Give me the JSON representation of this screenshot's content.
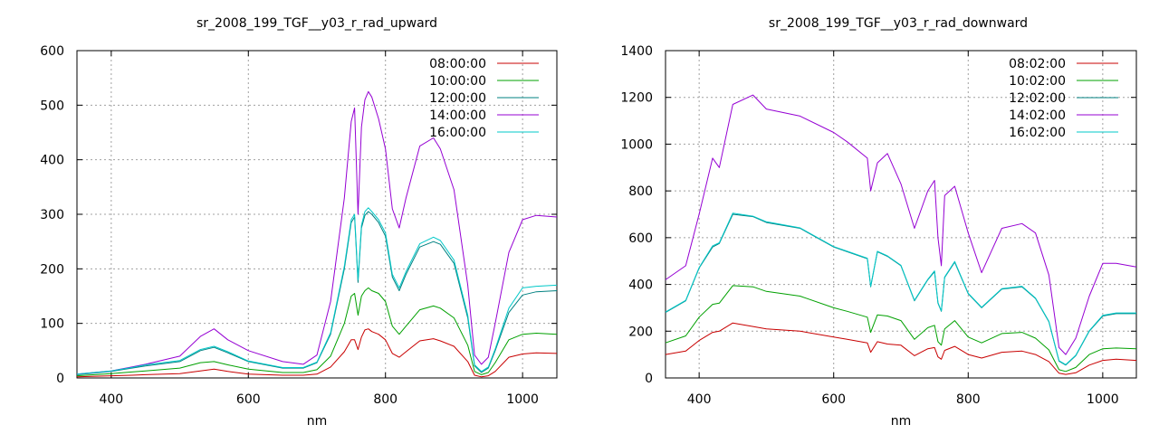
{
  "chart_data": [
    {
      "type": "line",
      "title": "sr_2008_199_TGF__y03_r_rad_upward",
      "xlabel": "nm",
      "ylabel": "",
      "xlim": [
        350,
        1050
      ],
      "ylim": [
        0,
        600
      ],
      "xticks": [
        400,
        600,
        800,
        1000
      ],
      "yticks": [
        0,
        100,
        200,
        300,
        400,
        500,
        600
      ],
      "grid": true,
      "legend_position": "top-right",
      "x": [
        350,
        400,
        430,
        450,
        500,
        530,
        550,
        570,
        600,
        650,
        680,
        700,
        720,
        740,
        750,
        755,
        760,
        765,
        770,
        775,
        780,
        790,
        800,
        810,
        820,
        830,
        850,
        870,
        880,
        900,
        920,
        930,
        940,
        950,
        960,
        980,
        1000,
        1020,
        1050
      ],
      "series": [
        {
          "name": "08:00:00",
          "color": "#c80000",
          "values": [
            2,
            4,
            5,
            6,
            8,
            13,
            16,
            12,
            7,
            5,
            5,
            7,
            20,
            48,
            70,
            70,
            52,
            75,
            88,
            90,
            85,
            80,
            70,
            45,
            38,
            48,
            68,
            72,
            68,
            58,
            30,
            5,
            2,
            4,
            12,
            38,
            44,
            46,
            45
          ]
        },
        {
          "name": "10:00:00",
          "color": "#00a000",
          "values": [
            4,
            8,
            11,
            13,
            18,
            28,
            30,
            24,
            16,
            10,
            10,
            15,
            40,
            100,
            150,
            155,
            115,
            150,
            160,
            165,
            160,
            155,
            140,
            95,
            80,
            95,
            125,
            132,
            128,
            110,
            60,
            12,
            6,
            10,
            28,
            70,
            80,
            82,
            80
          ]
        },
        {
          "name": "12:00:00",
          "color": "#008080",
          "values": [
            6,
            12,
            18,
            22,
            30,
            50,
            56,
            46,
            30,
            18,
            18,
            28,
            80,
            200,
            285,
            295,
            175,
            275,
            298,
            305,
            300,
            285,
            260,
            185,
            160,
            190,
            240,
            250,
            245,
            210,
            110,
            22,
            10,
            18,
            50,
            120,
            152,
            158,
            160
          ]
        },
        {
          "name": "14:00:00",
          "color": "#9500d3",
          "values": [
            7,
            13,
            20,
            25,
            40,
            76,
            90,
            70,
            50,
            30,
            25,
            42,
            140,
            330,
            470,
            495,
            300,
            460,
            510,
            525,
            515,
            475,
            420,
            310,
            275,
            330,
            425,
            440,
            420,
            345,
            170,
            42,
            25,
            38,
            100,
            230,
            290,
            298,
            295
          ]
        },
        {
          "name": "16:00:00",
          "color": "#00c8c8",
          "values": [
            7,
            13,
            19,
            24,
            32,
            52,
            58,
            48,
            31,
            19,
            19,
            29,
            83,
            205,
            290,
            300,
            180,
            280,
            305,
            312,
            305,
            290,
            266,
            190,
            165,
            195,
            246,
            258,
            252,
            216,
            115,
            24,
            12,
            20,
            53,
            128,
            165,
            168,
            170
          ]
        }
      ]
    },
    {
      "type": "line",
      "title": "sr_2008_199_TGF__y03_r_rad_downward",
      "xlabel": "nm",
      "ylabel": "",
      "xlim": [
        350,
        1050
      ],
      "ylim": [
        0,
        1400
      ],
      "xticks": [
        400,
        600,
        800,
        1000
      ],
      "yticks": [
        0,
        200,
        400,
        600,
        800,
        1000,
        1200,
        1400
      ],
      "grid": true,
      "legend_position": "top-right",
      "x": [
        350,
        380,
        400,
        420,
        430,
        450,
        480,
        500,
        550,
        600,
        620,
        650,
        655,
        665,
        680,
        700,
        720,
        740,
        750,
        755,
        760,
        765,
        780,
        800,
        820,
        850,
        880,
        900,
        920,
        935,
        945,
        960,
        980,
        1000,
        1020,
        1050
      ],
      "series": [
        {
          "name": "08:02:00",
          "color": "#c80000",
          "values": [
            100,
            115,
            160,
            195,
            200,
            235,
            220,
            210,
            200,
            175,
            165,
            150,
            110,
            155,
            145,
            140,
            95,
            125,
            130,
            90,
            80,
            118,
            135,
            100,
            85,
            110,
            115,
            100,
            70,
            20,
            15,
            22,
            55,
            75,
            80,
            75
          ]
        },
        {
          "name": "10:02:00",
          "color": "#00a000",
          "values": [
            150,
            180,
            260,
            315,
            320,
            395,
            390,
            370,
            350,
            300,
            285,
            260,
            195,
            270,
            265,
            245,
            165,
            215,
            225,
            155,
            140,
            210,
            245,
            175,
            150,
            190,
            195,
            170,
            120,
            35,
            28,
            45,
            100,
            125,
            128,
            125
          ]
        },
        {
          "name": "12:02:00",
          "color": "#008080",
          "values": [
            280,
            330,
            470,
            560,
            575,
            700,
            690,
            665,
            640,
            560,
            540,
            510,
            390,
            540,
            520,
            480,
            330,
            420,
            455,
            320,
            285,
            430,
            495,
            360,
            300,
            380,
            390,
            340,
            240,
            72,
            55,
            95,
            200,
            265,
            275,
            275
          ]
        },
        {
          "name": "14:02:00",
          "color": "#9500d3",
          "values": [
            420,
            480,
            700,
            940,
            900,
            1170,
            1210,
            1150,
            1120,
            1050,
            1010,
            940,
            800,
            920,
            960,
            830,
            640,
            800,
            845,
            600,
            480,
            780,
            820,
            620,
            450,
            640,
            660,
            620,
            440,
            130,
            100,
            170,
            350,
            490,
            490,
            475
          ]
        },
        {
          "name": "16:02:00",
          "color": "#00c8c8",
          "values": [
            282,
            332,
            472,
            565,
            578,
            705,
            692,
            668,
            642,
            562,
            542,
            512,
            392,
            542,
            522,
            482,
            332,
            422,
            458,
            322,
            287,
            432,
            498,
            362,
            302,
            382,
            392,
            342,
            242,
            74,
            57,
            97,
            202,
            268,
            278,
            278
          ]
        }
      ]
    }
  ]
}
